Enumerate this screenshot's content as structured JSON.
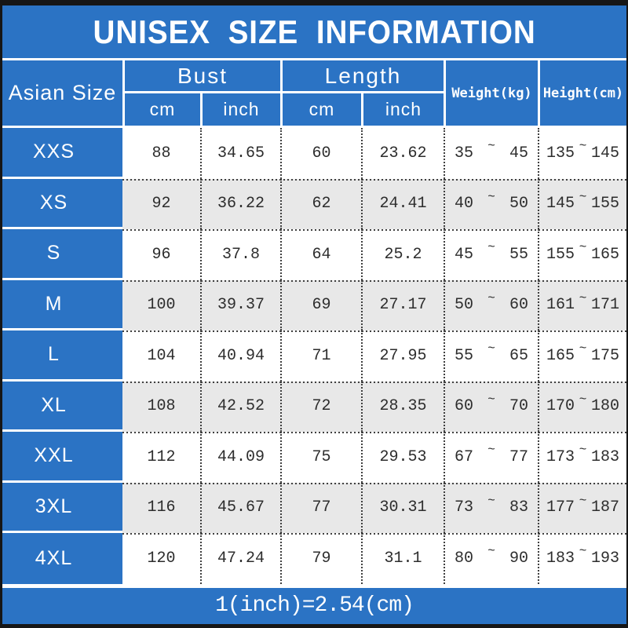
{
  "title": "UNISEX SIZE INFORMATION",
  "table": {
    "headers": {
      "asian_size": "Asian Size",
      "bust": "Bust",
      "length": "Length",
      "unit_cm": "cm",
      "unit_inch": "inch",
      "weight": "Weight(kg)",
      "height": "Height(cm)"
    },
    "range_separator": "~",
    "rows": [
      {
        "size": "XXS",
        "bust_cm": "88",
        "bust_inch": "34.65",
        "length_cm": "60",
        "length_inch": "23.62",
        "weight_min": "35",
        "weight_max": "45",
        "height_min": "135",
        "height_max": "145"
      },
      {
        "size": "XS",
        "bust_cm": "92",
        "bust_inch": "36.22",
        "length_cm": "62",
        "length_inch": "24.41",
        "weight_min": "40",
        "weight_max": "50",
        "height_min": "145",
        "height_max": "155"
      },
      {
        "size": "S",
        "bust_cm": "96",
        "bust_inch": "37.8",
        "length_cm": "64",
        "length_inch": "25.2",
        "weight_min": "45",
        "weight_max": "55",
        "height_min": "155",
        "height_max": "165"
      },
      {
        "size": "M",
        "bust_cm": "100",
        "bust_inch": "39.37",
        "length_cm": "69",
        "length_inch": "27.17",
        "weight_min": "50",
        "weight_max": "60",
        "height_min": "161",
        "height_max": "171"
      },
      {
        "size": "L",
        "bust_cm": "104",
        "bust_inch": "40.94",
        "length_cm": "71",
        "length_inch": "27.95",
        "weight_min": "55",
        "weight_max": "65",
        "height_min": "165",
        "height_max": "175"
      },
      {
        "size": "XL",
        "bust_cm": "108",
        "bust_inch": "42.52",
        "length_cm": "72",
        "length_inch": "28.35",
        "weight_min": "60",
        "weight_max": "70",
        "height_min": "170",
        "height_max": "180"
      },
      {
        "size": "XXL",
        "bust_cm": "112",
        "bust_inch": "44.09",
        "length_cm": "75",
        "length_inch": "29.53",
        "weight_min": "67",
        "weight_max": "77",
        "height_min": "173",
        "height_max": "183"
      },
      {
        "size": "3XL",
        "bust_cm": "116",
        "bust_inch": "45.67",
        "length_cm": "77",
        "length_inch": "30.31",
        "weight_min": "73",
        "weight_max": "83",
        "height_min": "177",
        "height_max": "187"
      },
      {
        "size": "4XL",
        "bust_cm": "120",
        "bust_inch": "47.24",
        "length_cm": "79",
        "length_inch": "31.1",
        "weight_min": "80",
        "weight_max": "90",
        "height_min": "183",
        "height_max": "193"
      }
    ]
  },
  "footer": {
    "conversion_note": "1(inch)=2.54(cm)"
  },
  "colors": {
    "blue": "#2b73c4",
    "alt_row_gray": "#e8e8e8",
    "text_dark": "#2d2d2d",
    "border_black": "#161616",
    "white": "#ffffff"
  }
}
